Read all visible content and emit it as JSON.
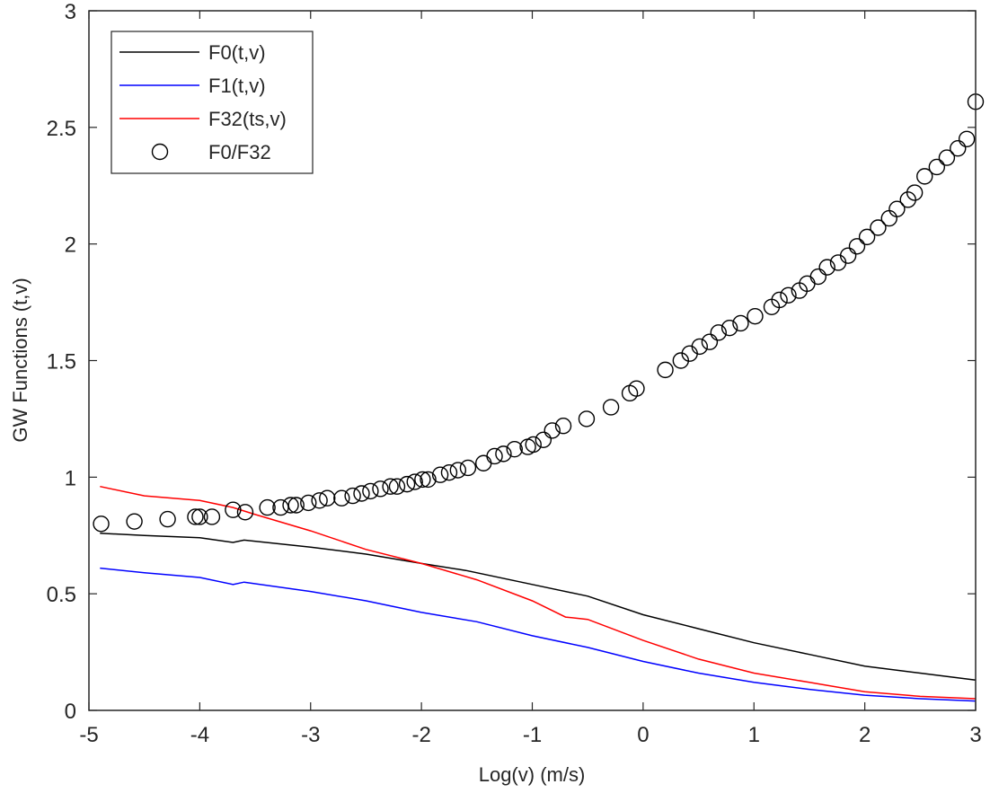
{
  "chart_data": {
    "type": "line",
    "title": "",
    "xlabel": "Log(v) (m/s)",
    "ylabel": "GW Functions (t,v)",
    "xlim": [
      -5,
      3
    ],
    "ylim": [
      0,
      3
    ],
    "xticks": [
      "-5",
      "-4",
      "-3",
      "-2",
      "-1",
      "0",
      "1",
      "2",
      "3"
    ],
    "yticks": [
      "0",
      "0.5",
      "1",
      "1.5",
      "2",
      "2.5",
      "3"
    ],
    "grid": false,
    "legend_position": "top-left",
    "series": [
      {
        "name": "F0(t,v)",
        "kind": "line",
        "color": "#000000",
        "x": [
          -4.9,
          -4.5,
          -4,
          -3.7,
          -3.6,
          -3,
          -2.5,
          -2,
          -1.6,
          -1,
          -0.5,
          0,
          0.5,
          1,
          1.5,
          2,
          2.5,
          3
        ],
        "y": [
          0.76,
          0.75,
          0.74,
          0.72,
          0.73,
          0.7,
          0.67,
          0.63,
          0.6,
          0.54,
          0.49,
          0.41,
          0.35,
          0.29,
          0.24,
          0.19,
          0.16,
          0.13
        ]
      },
      {
        "name": "F1(t,v)",
        "kind": "line",
        "color": "#0000ff",
        "x": [
          -4.9,
          -4.5,
          -4,
          -3.7,
          -3.6,
          -3,
          -2.5,
          -2,
          -1.5,
          -1,
          -0.5,
          0,
          0.5,
          1,
          1.5,
          2,
          2.5,
          3
        ],
        "y": [
          0.61,
          0.59,
          0.57,
          0.54,
          0.55,
          0.51,
          0.47,
          0.42,
          0.38,
          0.32,
          0.27,
          0.21,
          0.16,
          0.12,
          0.09,
          0.065,
          0.05,
          0.04
        ]
      },
      {
        "name": "F32(ts,v)",
        "kind": "line",
        "color": "#ff0000",
        "x": [
          -4.9,
          -4.5,
          -4,
          -3.7,
          -3.5,
          -3,
          -2.5,
          -2,
          -1.5,
          -1,
          -0.7,
          -0.5,
          0,
          0.5,
          1,
          1.5,
          2,
          2.5,
          3
        ],
        "y": [
          0.96,
          0.92,
          0.9,
          0.87,
          0.84,
          0.77,
          0.69,
          0.63,
          0.56,
          0.47,
          0.4,
          0.39,
          0.3,
          0.22,
          0.16,
          0.12,
          0.08,
          0.06,
          0.05
        ]
      },
      {
        "name": "F0/F32",
        "kind": "scatter",
        "color": "#000000",
        "x": [
          -4.89,
          -4.59,
          -4.29,
          -4.04,
          -4.0,
          -3.89,
          -3.7,
          -3.59,
          -3.39,
          -3.27,
          -3.18,
          -3.13,
          -3.02,
          -2.92,
          -2.85,
          -2.72,
          -2.62,
          -2.54,
          -2.46,
          -2.37,
          -2.28,
          -2.22,
          -2.13,
          -2.06,
          -1.99,
          -1.94,
          -1.83,
          -1.75,
          -1.67,
          -1.58,
          -1.44,
          -1.34,
          -1.26,
          -1.16,
          -1.04,
          -0.99,
          -0.9,
          -0.82,
          -0.72,
          -0.51,
          -0.29,
          -0.12,
          -0.06,
          0.2,
          0.34,
          0.42,
          0.51,
          0.6,
          0.68,
          0.78,
          0.88,
          1.01,
          1.16,
          1.23,
          1.31,
          1.41,
          1.48,
          1.58,
          1.66,
          1.76,
          1.85,
          1.93,
          2.02,
          2.12,
          2.22,
          2.29,
          2.39,
          2.45,
          2.54,
          2.65,
          2.74,
          2.84,
          2.92,
          3.0
        ],
        "y": [
          0.8,
          0.81,
          0.82,
          0.83,
          0.83,
          0.83,
          0.86,
          0.85,
          0.87,
          0.87,
          0.88,
          0.88,
          0.89,
          0.9,
          0.91,
          0.91,
          0.92,
          0.93,
          0.94,
          0.95,
          0.96,
          0.96,
          0.97,
          0.98,
          0.99,
          0.99,
          1.01,
          1.02,
          1.03,
          1.04,
          1.06,
          1.09,
          1.1,
          1.12,
          1.13,
          1.14,
          1.16,
          1.2,
          1.22,
          1.25,
          1.3,
          1.36,
          1.38,
          1.46,
          1.5,
          1.53,
          1.56,
          1.58,
          1.62,
          1.64,
          1.66,
          1.69,
          1.73,
          1.76,
          1.78,
          1.8,
          1.83,
          1.86,
          1.9,
          1.92,
          1.95,
          1.99,
          2.03,
          2.07,
          2.11,
          2.15,
          2.19,
          2.22,
          2.29,
          2.33,
          2.37,
          2.41,
          2.45,
          2.61
        ]
      }
    ]
  }
}
